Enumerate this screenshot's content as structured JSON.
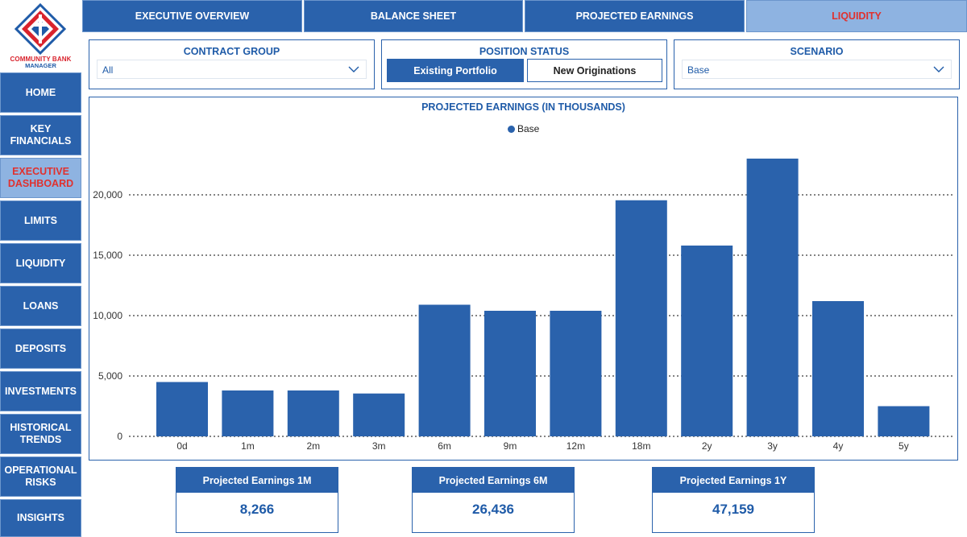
{
  "brand": {
    "line1": "COMMUNITY BANK",
    "line2": "MANAGER",
    "colors": {
      "primary": "#2a62ac",
      "accent": "#d9232d"
    }
  },
  "tabs": [
    {
      "label": "EXECUTIVE OVERVIEW",
      "active": false
    },
    {
      "label": "BALANCE SHEET",
      "active": false
    },
    {
      "label": "PROJECTED EARNINGS",
      "active": false
    },
    {
      "label": "LIQUIDITY",
      "active": true
    }
  ],
  "sidebar": {
    "items": [
      {
        "label": "HOME",
        "active": false
      },
      {
        "label": "KEY FINANCIALS",
        "active": false
      },
      {
        "label": "EXECUTIVE DASHBOARD",
        "active": true
      },
      {
        "label": "LIMITS",
        "active": false
      },
      {
        "label": "LIQUIDITY",
        "active": false
      },
      {
        "label": "LOANS",
        "active": false
      },
      {
        "label": "DEPOSITS",
        "active": false
      },
      {
        "label": "INVESTMENTS",
        "active": false
      },
      {
        "label": "HISTORICAL TRENDS",
        "active": false
      },
      {
        "label": "OPERATIONAL RISKS",
        "active": false
      },
      {
        "label": "INSIGHTS",
        "active": false
      }
    ]
  },
  "filters": {
    "contract_group": {
      "title": "CONTRACT GROUP",
      "value": "All"
    },
    "position_status": {
      "title": "POSITION STATUS",
      "options": [
        "Existing Portfolio",
        "New Originations"
      ],
      "selected": "Existing Portfolio"
    },
    "scenario": {
      "title": "SCENARIO",
      "value": "Base"
    }
  },
  "chart_data": {
    "type": "bar",
    "title": "PROJECTED EARNINGS (IN THOUSANDS)",
    "categories": [
      "0d",
      "1m",
      "2m",
      "3m",
      "6m",
      "9m",
      "12m",
      "18m",
      "2y",
      "3y",
      "4y",
      "5y"
    ],
    "series": [
      {
        "name": "Base",
        "color": "#2a62ac",
        "values": [
          4500,
          3800,
          3800,
          3550,
          10900,
          10400,
          10400,
          19550,
          15800,
          23000,
          11200,
          2500
        ]
      }
    ],
    "yticks": [
      0,
      5000,
      10000,
      15000,
      20000
    ],
    "ytick_labels": [
      "0",
      "5,000",
      "10,000",
      "15,000",
      "20,000"
    ],
    "ylim": [
      0,
      25000
    ],
    "grid": "dotted horizontal",
    "legend": "top-center"
  },
  "kpis": [
    {
      "label": "Projected Earnings 1M",
      "value": "8,266"
    },
    {
      "label": "Projected Earnings 6M",
      "value": "26,436"
    },
    {
      "label": "Projected Earnings 1Y",
      "value": "47,159"
    }
  ]
}
